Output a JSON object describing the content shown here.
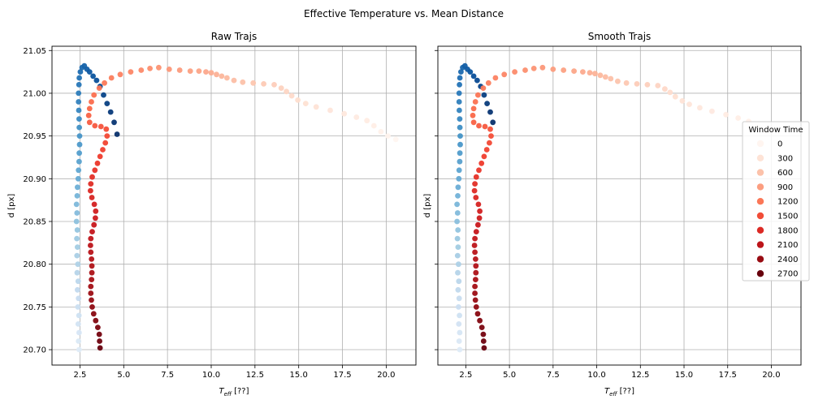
{
  "figure": {
    "title": "Effective Temperature vs. Mean Distance"
  },
  "legend": {
    "title": "Window Time",
    "placement": "right",
    "entries": [
      {
        "label": "0",
        "color": "#fff5f0"
      },
      {
        "label": "300",
        "color": "#fee3d6"
      },
      {
        "label": "600",
        "color": "#fcc2aa"
      },
      {
        "label": "900",
        "color": "#fc9e80"
      },
      {
        "label": "1200",
        "color": "#fb7757"
      },
      {
        "label": "1500",
        "color": "#f14d38"
      },
      {
        "label": "1800",
        "color": "#dc2a25"
      },
      {
        "label": "2100",
        "color": "#bc151a"
      },
      {
        "label": "2400",
        "color": "#980c13"
      },
      {
        "label": "2700",
        "color": "#67000d"
      }
    ]
  },
  "chart_data": [
    {
      "type": "scatter",
      "title": "Raw Trajs",
      "xlabel": "T_eff [??]",
      "ylabel": "d [px]",
      "xlim": [
        0.9,
        21.7
      ],
      "ylim": [
        20.682,
        21.055
      ],
      "xticks": [
        "2.5",
        "5.0",
        "7.5",
        "10.0",
        "12.5",
        "15.0",
        "17.5",
        "20.0"
      ],
      "yticks": [
        "20.70",
        "20.75",
        "20.80",
        "20.85",
        "20.90",
        "20.95",
        "21.00",
        "21.05"
      ],
      "grid": true,
      "color_encoding": "Window Time (0 → 2700)",
      "series": [
        {
          "name": "",
          "colormap": "blues",
          "points": [
            [
              2.45,
              20.7
            ],
            [
              2.42,
              20.71
            ],
            [
              2.45,
              20.72
            ],
            [
              2.4,
              20.73
            ],
            [
              2.44,
              20.74
            ],
            [
              2.38,
              20.75
            ],
            [
              2.42,
              20.76
            ],
            [
              2.36,
              20.77
            ],
            [
              2.4,
              20.78
            ],
            [
              2.34,
              20.79
            ],
            [
              2.38,
              20.8
            ],
            [
              2.33,
              20.81
            ],
            [
              2.36,
              20.82
            ],
            [
              2.32,
              20.83
            ],
            [
              2.35,
              20.84
            ],
            [
              2.3,
              20.85
            ],
            [
              2.33,
              20.86
            ],
            [
              2.3,
              20.87
            ],
            [
              2.34,
              20.88
            ],
            [
              2.36,
              20.89
            ],
            [
              2.4,
              20.9
            ],
            [
              2.42,
              20.91
            ],
            [
              2.45,
              20.92
            ],
            [
              2.46,
              20.93
            ],
            [
              2.48,
              20.94
            ],
            [
              2.48,
              20.95
            ],
            [
              2.46,
              20.96
            ],
            [
              2.45,
              20.97
            ],
            [
              2.43,
              20.98
            ],
            [
              2.42,
              20.99
            ],
            [
              2.42,
              21.0
            ],
            [
              2.44,
              21.01
            ],
            [
              2.46,
              21.018
            ],
            [
              2.52,
              21.025
            ],
            [
              2.62,
              21.03
            ],
            [
              2.75,
              21.032
            ],
            [
              2.9,
              21.028
            ],
            [
              3.05,
              21.025
            ],
            [
              3.25,
              21.02
            ],
            [
              3.45,
              21.015
            ],
            [
              3.65,
              21.008
            ],
            [
              3.85,
              20.998
            ],
            [
              4.05,
              20.988
            ],
            [
              4.25,
              20.978
            ],
            [
              4.45,
              20.966
            ],
            [
              4.62,
              20.952
            ]
          ]
        },
        {
          "name": "",
          "colormap": "reds",
          "points": [
            [
              20.55,
              20.946
            ],
            [
              20.1,
              20.95
            ],
            [
              19.7,
              20.955
            ],
            [
              19.3,
              20.962
            ],
            [
              18.9,
              20.968
            ],
            [
              18.3,
              20.972
            ],
            [
              17.6,
              20.976
            ],
            [
              16.8,
              20.98
            ],
            [
              16.0,
              20.984
            ],
            [
              15.4,
              20.988
            ],
            [
              14.95,
              20.992
            ],
            [
              14.6,
              20.997
            ],
            [
              14.3,
              21.002
            ],
            [
              14.0,
              21.006
            ],
            [
              13.6,
              21.01
            ],
            [
              13.0,
              21.011
            ],
            [
              12.4,
              21.012
            ],
            [
              11.8,
              21.013
            ],
            [
              11.3,
              21.015
            ],
            [
              10.9,
              21.018
            ],
            [
              10.6,
              21.02
            ],
            [
              10.3,
              21.022
            ],
            [
              10.0,
              21.024
            ],
            [
              9.7,
              21.025
            ],
            [
              9.3,
              21.026
            ],
            [
              8.8,
              21.026
            ],
            [
              8.2,
              21.027
            ],
            [
              7.6,
              21.028
            ],
            [
              7.0,
              21.03
            ],
            [
              6.5,
              21.029
            ],
            [
              6.0,
              21.027
            ],
            [
              5.4,
              21.025
            ],
            [
              4.8,
              21.022
            ],
            [
              4.3,
              21.018
            ],
            [
              3.9,
              21.012
            ],
            [
              3.6,
              21.006
            ],
            [
              3.3,
              20.998
            ],
            [
              3.15,
              20.99
            ],
            [
              3.05,
              20.982
            ],
            [
              3.0,
              20.974
            ],
            [
              3.05,
              20.966
            ],
            [
              3.35,
              20.962
            ],
            [
              3.7,
              20.961
            ],
            [
              4.0,
              20.958
            ],
            [
              4.05,
              20.95
            ],
            [
              3.95,
              20.942
            ],
            [
              3.8,
              20.934
            ],
            [
              3.65,
              20.926
            ],
            [
              3.5,
              20.918
            ],
            [
              3.35,
              20.91
            ],
            [
              3.2,
              20.902
            ],
            [
              3.12,
              20.894
            ],
            [
              3.1,
              20.886
            ],
            [
              3.18,
              20.878
            ],
            [
              3.32,
              20.87
            ],
            [
              3.4,
              20.862
            ],
            [
              3.38,
              20.854
            ],
            [
              3.3,
              20.846
            ],
            [
              3.2,
              20.838
            ],
            [
              3.12,
              20.83
            ],
            [
              3.1,
              20.822
            ],
            [
              3.12,
              20.814
            ],
            [
              3.16,
              20.806
            ],
            [
              3.18,
              20.798
            ],
            [
              3.18,
              20.79
            ],
            [
              3.16,
              20.782
            ],
            [
              3.12,
              20.774
            ],
            [
              3.12,
              20.766
            ],
            [
              3.15,
              20.758
            ],
            [
              3.2,
              20.75
            ],
            [
              3.28,
              20.742
            ],
            [
              3.4,
              20.734
            ],
            [
              3.52,
              20.726
            ],
            [
              3.6,
              20.718
            ],
            [
              3.62,
              20.71
            ],
            [
              3.65,
              20.702
            ]
          ]
        }
      ]
    },
    {
      "type": "scatter",
      "title": "Smooth Trajs",
      "xlabel": "T_eff [??]",
      "ylabel": "d [px]",
      "xlim": [
        0.9,
        21.7
      ],
      "ylim": [
        20.682,
        21.055
      ],
      "xticks": [
        "2.5",
        "5.0",
        "7.5",
        "10.0",
        "12.5",
        "15.0",
        "17.5",
        "20.0"
      ],
      "yticks": [],
      "grid": true,
      "color_encoding": "Window Time (0 → 2700)",
      "series": [
        {
          "name": "",
          "colormap": "blues",
          "points": [
            [
              2.15,
              20.7
            ],
            [
              2.12,
              20.71
            ],
            [
              2.15,
              20.72
            ],
            [
              2.1,
              20.73
            ],
            [
              2.14,
              20.74
            ],
            [
              2.08,
              20.75
            ],
            [
              2.12,
              20.76
            ],
            [
              2.06,
              20.77
            ],
            [
              2.1,
              20.78
            ],
            [
              2.04,
              20.79
            ],
            [
              2.08,
              20.8
            ],
            [
              2.03,
              20.81
            ],
            [
              2.06,
              20.82
            ],
            [
              2.02,
              20.83
            ],
            [
              2.05,
              20.84
            ],
            [
              2.0,
              20.85
            ],
            [
              2.03,
              20.86
            ],
            [
              2.0,
              20.87
            ],
            [
              2.04,
              20.88
            ],
            [
              2.06,
              20.89
            ],
            [
              2.1,
              20.9
            ],
            [
              2.12,
              20.91
            ],
            [
              2.15,
              20.92
            ],
            [
              2.16,
              20.93
            ],
            [
              2.18,
              20.94
            ],
            [
              2.18,
              20.95
            ],
            [
              2.16,
              20.96
            ],
            [
              2.15,
              20.97
            ],
            [
              2.13,
              20.98
            ],
            [
              2.12,
              20.99
            ],
            [
              2.12,
              21.0
            ],
            [
              2.14,
              21.01
            ],
            [
              2.16,
              21.018
            ],
            [
              2.22,
              21.025
            ],
            [
              2.32,
              21.03
            ],
            [
              2.45,
              21.032
            ],
            [
              2.6,
              21.028
            ],
            [
              2.75,
              21.025
            ],
            [
              2.95,
              21.02
            ],
            [
              3.15,
              21.015
            ],
            [
              3.35,
              21.008
            ],
            [
              3.55,
              20.998
            ],
            [
              3.72,
              20.988
            ],
            [
              3.9,
              20.978
            ],
            [
              4.05,
              20.966
            ]
          ]
        },
        {
          "name": "",
          "colormap": "reds",
          "points": [
            [
              19.7,
              20.955
            ],
            [
              19.2,
              20.962
            ],
            [
              18.7,
              20.967
            ],
            [
              18.1,
              20.971
            ],
            [
              17.4,
              20.975
            ],
            [
              16.6,
              20.979
            ],
            [
              15.9,
              20.983
            ],
            [
              15.3,
              20.987
            ],
            [
              14.9,
              20.991
            ],
            [
              14.5,
              20.996
            ],
            [
              14.2,
              21.001
            ],
            [
              13.9,
              21.005
            ],
            [
              13.5,
              21.009
            ],
            [
              12.9,
              21.01
            ],
            [
              12.3,
              21.011
            ],
            [
              11.7,
              21.012
            ],
            [
              11.2,
              21.014
            ],
            [
              10.8,
              21.017
            ],
            [
              10.5,
              21.019
            ],
            [
              10.2,
              21.021
            ],
            [
              9.9,
              21.023
            ],
            [
              9.6,
              21.024
            ],
            [
              9.2,
              21.025
            ],
            [
              8.7,
              21.026
            ],
            [
              8.1,
              21.027
            ],
            [
              7.5,
              21.028
            ],
            [
              6.9,
              21.03
            ],
            [
              6.4,
              21.029
            ],
            [
              5.9,
              21.027
            ],
            [
              5.3,
              21.025
            ],
            [
              4.7,
              21.022
            ],
            [
              4.2,
              21.018
            ],
            [
              3.8,
              21.012
            ],
            [
              3.5,
              21.006
            ],
            [
              3.2,
              20.998
            ],
            [
              3.05,
              20.99
            ],
            [
              2.95,
              20.982
            ],
            [
              2.9,
              20.974
            ],
            [
              2.95,
              20.966
            ],
            [
              3.25,
              20.962
            ],
            [
              3.6,
              20.961
            ],
            [
              3.9,
              20.958
            ],
            [
              3.95,
              20.95
            ],
            [
              3.85,
              20.942
            ],
            [
              3.7,
              20.934
            ],
            [
              3.55,
              20.926
            ],
            [
              3.4,
              20.918
            ],
            [
              3.25,
              20.91
            ],
            [
              3.1,
              20.902
            ],
            [
              3.02,
              20.894
            ],
            [
              3.0,
              20.886
            ],
            [
              3.08,
              20.878
            ],
            [
              3.22,
              20.87
            ],
            [
              3.3,
              20.862
            ],
            [
              3.28,
              20.854
            ],
            [
              3.2,
              20.846
            ],
            [
              3.1,
              20.838
            ],
            [
              3.02,
              20.83
            ],
            [
              3.0,
              20.822
            ],
            [
              3.02,
              20.814
            ],
            [
              3.06,
              20.806
            ],
            [
              3.08,
              20.798
            ],
            [
              3.08,
              20.79
            ],
            [
              3.06,
              20.782
            ],
            [
              3.02,
              20.774
            ],
            [
              3.02,
              20.766
            ],
            [
              3.05,
              20.758
            ],
            [
              3.1,
              20.75
            ],
            [
              3.18,
              20.742
            ],
            [
              3.3,
              20.734
            ],
            [
              3.42,
              20.726
            ],
            [
              3.5,
              20.718
            ],
            [
              3.52,
              20.71
            ],
            [
              3.55,
              20.702
            ]
          ]
        }
      ]
    }
  ]
}
